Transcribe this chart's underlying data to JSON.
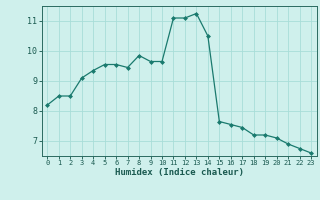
{
  "x": [
    0,
    1,
    2,
    3,
    4,
    5,
    6,
    7,
    8,
    9,
    10,
    11,
    12,
    13,
    14,
    15,
    16,
    17,
    18,
    19,
    20,
    21,
    22,
    23
  ],
  "y": [
    8.2,
    8.5,
    8.5,
    9.1,
    9.35,
    9.55,
    9.55,
    9.45,
    9.85,
    9.65,
    9.65,
    11.1,
    11.1,
    11.25,
    10.5,
    7.65,
    7.55,
    7.45,
    7.2,
    7.2,
    7.1,
    6.9,
    6.75,
    6.6
  ],
  "xlabel": "Humidex (Indice chaleur)",
  "xlim": [
    -0.5,
    23.5
  ],
  "ylim": [
    6.5,
    11.5
  ],
  "yticks": [
    7,
    8,
    9,
    10,
    11
  ],
  "xticks": [
    0,
    1,
    2,
    3,
    4,
    5,
    6,
    7,
    8,
    9,
    10,
    11,
    12,
    13,
    14,
    15,
    16,
    17,
    18,
    19,
    20,
    21,
    22,
    23
  ],
  "line_color": "#1a7a6e",
  "marker_color": "#1a7a6e",
  "bg_color": "#cff0ec",
  "grid_color": "#a8ddd8",
  "axis_color": "#2a6a60",
  "tick_label_color": "#1a5a50",
  "xlabel_color": "#1a5a50"
}
